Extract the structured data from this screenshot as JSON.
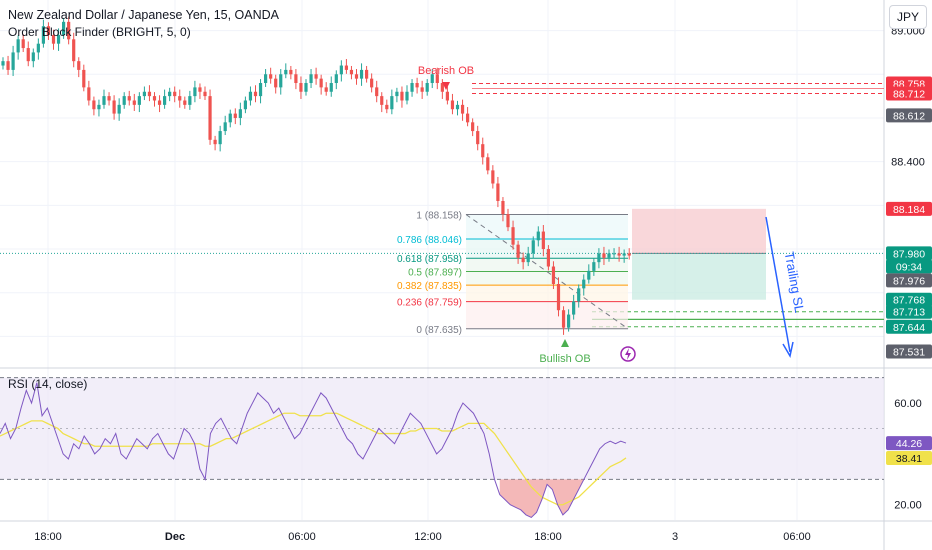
{
  "header": {
    "title": "New Zealand Dollar / Japanese Yen, 15, OANDA",
    "indicator": "Order Block Finder (BRIGHT, 5, 0)",
    "currency_button": "JPY"
  },
  "colors": {
    "up": "#26a69a",
    "down": "#ef5350",
    "grid": "#f0f3fa",
    "axis_text": "#131722",
    "rsi_line": "#7e57c2",
    "rsi_ma": "#f0e14a",
    "fib_red": "#f23645",
    "fib_orange": "#ff9800",
    "fib_green": "#4caf50",
    "fib_teal": "#089981",
    "fib_cyan": "#00bcd4",
    "fib_gray": "#787b86",
    "trail": "#2962ff"
  },
  "chart_data": [
    {
      "type": "candlestick",
      "title": "New Zealand Dollar / Japanese Yen, 15, OANDA",
      "ylim": [
        87.46,
        89.14
      ],
      "y_ticks": [
        89.0,
        88.4
      ],
      "x_ticks": [
        "18:00",
        "Dec",
        "06:00",
        "12:00",
        "18:00",
        "3",
        "06:00"
      ],
      "closes": [
        88.86,
        88.82,
        88.9,
        88.96,
        88.92,
        88.86,
        88.9,
        88.94,
        89.02,
        88.98,
        88.94,
        88.98,
        89.04,
        88.96,
        88.86,
        88.82,
        88.74,
        88.68,
        88.64,
        88.66,
        88.7,
        88.68,
        88.62,
        88.66,
        88.7,
        88.68,
        88.66,
        88.7,
        88.72,
        88.7,
        88.68,
        88.66,
        88.7,
        88.72,
        88.7,
        88.68,
        88.66,
        88.7,
        88.74,
        88.72,
        88.7,
        88.5,
        88.48,
        88.54,
        88.58,
        88.62,
        88.6,
        88.64,
        88.68,
        88.72,
        88.7,
        88.76,
        88.8,
        88.78,
        88.74,
        88.8,
        88.82,
        88.8,
        88.76,
        88.72,
        88.76,
        88.8,
        88.78,
        88.74,
        88.72,
        88.76,
        88.8,
        88.84,
        88.82,
        88.8,
        88.78,
        88.82,
        88.78,
        88.74,
        88.7,
        88.66,
        88.64,
        88.7,
        88.72,
        88.68,
        88.72,
        88.76,
        88.74,
        88.72,
        88.76,
        88.8,
        88.76,
        88.72,
        88.68,
        88.64,
        88.66,
        88.62,
        88.58,
        88.54,
        88.48,
        88.42,
        88.36,
        88.3,
        88.22,
        88.16,
        88.1,
        88.02,
        87.96,
        87.94,
        87.98,
        88.04,
        88.08,
        88.0,
        87.92,
        87.84,
        87.72,
        87.64,
        87.7,
        87.76,
        87.82,
        87.86,
        87.9,
        87.94,
        87.98,
        87.96,
        87.98,
        87.98,
        87.97,
        87.98,
        87.97
      ],
      "order_blocks": [
        {
          "label": "Bearish OB",
          "upper": 88.758,
          "lower": 88.712
        },
        {
          "label": "Bullish OB",
          "upper": 87.713,
          "lower": 87.644
        }
      ],
      "fib_levels": [
        {
          "ratio": "1",
          "price": 88.158
        },
        {
          "ratio": "0.786",
          "price": 88.046
        },
        {
          "ratio": "0.618",
          "price": 87.958
        },
        {
          "ratio": "0.5",
          "price": 87.897
        },
        {
          "ratio": "0.382",
          "price": 87.835
        },
        {
          "ratio": "0.236",
          "price": 87.759
        },
        {
          "ratio": "0",
          "price": 87.635
        }
      ],
      "position": {
        "stop": 88.184,
        "entry": 87.98,
        "target": 87.768
      },
      "annotation": "Trailing SL",
      "price_labels": [
        {
          "value": "88.758",
          "kind": "red"
        },
        {
          "value": "88.712",
          "kind": "red"
        },
        {
          "value": "88.612",
          "kind": "gray"
        },
        {
          "value": "88.184",
          "kind": "red"
        },
        {
          "value": "87.980",
          "kind": "teal"
        },
        {
          "value": "09:34",
          "kind": "teal"
        },
        {
          "value": "87.976",
          "kind": "gray"
        },
        {
          "value": "87.768",
          "kind": "green"
        },
        {
          "value": "87.713",
          "kind": "green"
        },
        {
          "value": "87.644",
          "kind": "green"
        },
        {
          "value": "87.531",
          "kind": "gray"
        }
      ]
    },
    {
      "type": "line",
      "title": "RSI (14, close)",
      "ylim": [
        14,
        73
      ],
      "y_ticks": [
        60.0,
        20.0
      ],
      "bands": [
        70,
        30
      ],
      "series": [
        {
          "name": "RSI",
          "values": [
            48,
            52,
            46,
            50,
            58,
            65,
            60,
            68,
            55,
            58,
            52,
            46,
            40,
            38,
            44,
            42,
            47,
            44,
            40,
            42,
            46,
            44,
            48,
            40,
            38,
            42,
            46,
            44,
            42,
            46,
            48,
            44,
            40,
            38,
            44,
            50,
            48,
            44,
            34,
            30,
            48,
            52,
            54,
            50,
            46,
            44,
            50,
            56,
            60,
            64,
            62,
            60,
            56,
            58,
            54,
            50,
            46,
            48,
            52,
            56,
            60,
            64,
            62,
            58,
            54,
            50,
            46,
            44,
            40,
            38,
            42,
            46,
            50,
            48,
            46,
            44,
            48,
            52,
            56,
            54,
            52,
            48,
            44,
            40,
            42,
            46,
            50,
            56,
            60,
            58,
            56,
            52,
            48,
            40,
            30,
            24,
            22,
            20,
            19,
            18,
            16,
            15,
            17,
            22,
            28,
            26,
            20,
            16,
            18,
            22,
            26,
            30,
            34,
            38,
            42,
            44,
            45,
            44,
            45,
            44.26
          ]
        },
        {
          "name": "MA",
          "values": [
            47,
            48,
            49,
            50,
            51,
            52,
            53,
            53,
            53,
            52,
            51,
            50,
            48,
            47,
            46,
            45,
            44,
            44,
            43,
            43,
            43,
            43,
            43,
            43,
            43,
            43,
            43,
            43,
            43,
            44,
            44,
            44,
            44,
            44,
            44,
            44,
            44,
            44,
            44,
            43,
            43,
            44,
            45,
            46,
            46,
            47,
            48,
            49,
            50,
            51,
            52,
            53,
            54,
            55,
            56,
            56,
            56,
            55,
            55,
            55,
            55,
            55,
            56,
            56,
            56,
            55,
            54,
            53,
            52,
            51,
            50,
            49,
            48,
            48,
            48,
            48,
            48,
            48,
            49,
            49,
            50,
            50,
            50,
            50,
            49,
            49,
            49,
            50,
            51,
            52,
            52,
            52,
            52,
            50,
            48,
            45,
            42,
            39,
            36,
            33,
            30,
            27,
            25,
            23,
            22,
            21,
            20,
            20,
            21,
            22,
            23,
            25,
            27,
            29,
            31,
            33,
            35,
            36,
            37,
            38.41
          ]
        }
      ],
      "value_labels": [
        "44.26",
        "38.41"
      ]
    }
  ]
}
